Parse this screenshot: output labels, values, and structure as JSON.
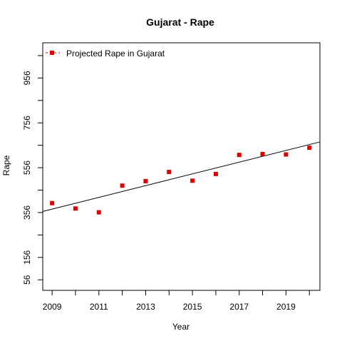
{
  "chart_data": {
    "type": "scatter",
    "title": "Gujarat  -  Rape",
    "xlabel": "Year",
    "ylabel": "Rape",
    "xlim": [
      2008.6,
      2020.45
    ],
    "ylim": [
      9,
      1113
    ],
    "x_ticks": [
      2009,
      2010,
      2011,
      2012,
      2013,
      2014,
      2015,
      2016,
      2017,
      2018,
      2019,
      2020
    ],
    "x_tick_labels": [
      "2009",
      "",
      "2011",
      "",
      "2013",
      "",
      "2015",
      "",
      "2017",
      "",
      "2019",
      ""
    ],
    "y_ticks": [
      56,
      156,
      256,
      356,
      456,
      556,
      656,
      756,
      856,
      956,
      1056
    ],
    "y_tick_labels": [
      "56",
      "156",
      "",
      "356",
      "",
      "556",
      "",
      "756",
      "",
      "956",
      ""
    ],
    "grid": false,
    "legend": {
      "position": "top-left",
      "entries": [
        "Projected Rape  in  Gujarat"
      ]
    },
    "series": [
      {
        "name": "Projected Rape  in  Gujarat",
        "color": "#dd0000",
        "marker": "square",
        "x": [
          2009,
          2010,
          2011,
          2012,
          2013,
          2014,
          2015,
          2016,
          2017,
          2018,
          2019,
          2020
        ],
        "y": [
          398,
          374,
          357,
          476,
          496,
          537,
          498,
          528,
          613,
          617,
          615,
          645
        ]
      }
    ],
    "trend_line": {
      "color": "#000000",
      "x": [
        2008.6,
        2020.45
      ],
      "y": [
        361,
        671
      ]
    }
  }
}
